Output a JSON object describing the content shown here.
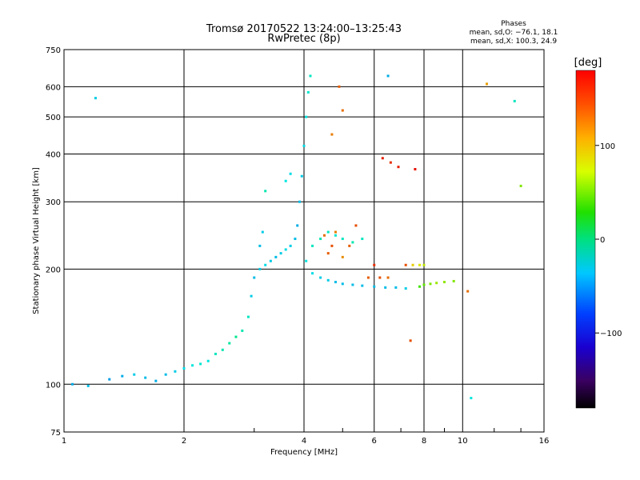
{
  "chart_data": {
    "type": "scatter",
    "title": "Tromsø 20170522 13:24:00–13:25:43",
    "subtitle": "RwPretec (8p)",
    "phases_header": "Phases",
    "phases_line1": "mean, sd,O: −76.1, 18.1",
    "phases_line2": "mean, sd,X: 100.3, 24.9",
    "xlabel": "Frequency [MHz]",
    "ylabel": "Stationary phase Virtual Height [km]",
    "x_scale": "log",
    "y_scale": "log",
    "xlim": [
      1,
      16
    ],
    "ylim": [
      75,
      750
    ],
    "x_ticks": [
      1,
      2,
      4,
      6,
      8,
      10,
      16
    ],
    "x_tick_labels": [
      "1",
      "2",
      "4",
      "6",
      "8",
      "10",
      "16"
    ],
    "y_ticks": [
      75,
      100,
      200,
      300,
      400,
      500,
      600,
      750
    ],
    "y_tick_labels": [
      "75",
      "100",
      "200",
      "300",
      "400",
      "500",
      "600",
      "750"
    ],
    "grid": true,
    "colorbar": {
      "label": "[deg]",
      "range": [
        -180,
        180
      ],
      "ticks": [
        100,
        0,
        -100
      ],
      "tick_labels": [
        "100",
        "0",
        "−100"
      ]
    },
    "series": [
      {
        "values": [
          [
            1.05,
            100,
            -90
          ],
          [
            1.15,
            99,
            -85
          ],
          [
            1.3,
            103,
            -95
          ],
          [
            1.4,
            105,
            -90
          ],
          [
            1.5,
            106,
            -80
          ],
          [
            1.6,
            104,
            -85
          ],
          [
            1.7,
            102,
            -90
          ],
          [
            1.8,
            106,
            -85
          ],
          [
            1.9,
            108,
            -80
          ],
          [
            2.0,
            110,
            -75
          ],
          [
            2.1,
            112,
            -70
          ],
          [
            2.2,
            113,
            -65
          ],
          [
            2.3,
            115,
            -70
          ],
          [
            2.4,
            120,
            -60
          ],
          [
            2.5,
            123,
            -55
          ],
          [
            2.6,
            128,
            -50
          ],
          [
            2.7,
            133,
            -45
          ],
          [
            2.8,
            138,
            -55
          ],
          [
            2.9,
            150,
            -60
          ],
          [
            2.95,
            170,
            -80
          ],
          [
            3.0,
            190,
            -85
          ],
          [
            3.1,
            200,
            -80
          ],
          [
            3.2,
            205,
            -75
          ],
          [
            3.3,
            210,
            -80
          ],
          [
            3.4,
            215,
            -85
          ],
          [
            3.5,
            220,
            -80
          ],
          [
            3.6,
            225,
            -75
          ],
          [
            3.7,
            230,
            -80
          ],
          [
            3.8,
            240,
            -85
          ],
          [
            3.85,
            260,
            -90
          ],
          [
            3.9,
            300,
            -85
          ],
          [
            3.95,
            350,
            -80
          ],
          [
            4.0,
            420,
            -75
          ],
          [
            4.05,
            500,
            -70
          ],
          [
            4.1,
            580,
            -65
          ],
          [
            4.15,
            640,
            -60
          ],
          [
            3.1,
            230,
            -85
          ],
          [
            3.15,
            250,
            -80
          ],
          [
            3.2,
            320,
            -55
          ],
          [
            3.6,
            340,
            -70
          ],
          [
            3.7,
            355,
            -75
          ],
          [
            4.05,
            210,
            -70
          ],
          [
            4.2,
            195,
            -75
          ],
          [
            4.4,
            190,
            -80
          ],
          [
            4.6,
            187,
            -80
          ],
          [
            4.8,
            185,
            -85
          ],
          [
            5.0,
            183,
            -85
          ],
          [
            5.3,
            182,
            -85
          ],
          [
            5.6,
            181,
            -85
          ],
          [
            6.0,
            180,
            -85
          ],
          [
            6.4,
            179,
            -85
          ],
          [
            6.8,
            179,
            -85
          ],
          [
            7.2,
            178,
            -80
          ],
          [
            1.2,
            560,
            -80
          ],
          [
            6.5,
            640,
            -90
          ],
          [
            10.5,
            92,
            -70
          ],
          [
            4.2,
            230,
            -60
          ],
          [
            4.4,
            240,
            -55
          ],
          [
            4.6,
            250,
            -60
          ],
          [
            4.8,
            245,
            -65
          ],
          [
            5.0,
            240,
            -60
          ],
          [
            5.3,
            235,
            -55
          ],
          [
            5.6,
            240,
            -60
          ],
          [
            13.5,
            550,
            -60
          ]
        ]
      },
      {
        "values": [
          [
            4.5,
            245,
            110
          ],
          [
            4.6,
            220,
            115
          ],
          [
            4.7,
            230,
            120
          ],
          [
            4.8,
            250,
            105
          ],
          [
            4.9,
            600,
            115
          ],
          [
            5.0,
            520,
            110
          ],
          [
            5.0,
            215,
            100
          ],
          [
            5.2,
            230,
            115
          ],
          [
            5.4,
            260,
            120
          ],
          [
            4.7,
            450,
            105
          ],
          [
            6.0,
            205,
            130
          ],
          [
            6.3,
            390,
            135
          ],
          [
            6.6,
            380,
            130
          ],
          [
            6.9,
            370,
            135
          ],
          [
            7.2,
            205,
            120
          ],
          [
            7.5,
            205,
            80
          ],
          [
            7.8,
            205,
            70
          ],
          [
            8.0,
            205,
            60
          ],
          [
            7.6,
            365,
            140
          ],
          [
            7.8,
            180,
            20
          ],
          [
            8.0,
            182,
            30
          ],
          [
            8.3,
            183,
            40
          ],
          [
            8.6,
            184,
            50
          ],
          [
            9.0,
            185,
            45
          ],
          [
            9.5,
            186,
            40
          ],
          [
            10.3,
            175,
            110
          ],
          [
            11.5,
            610,
            95
          ],
          [
            7.4,
            130,
            120
          ],
          [
            5.8,
            190,
            115
          ],
          [
            6.2,
            190,
            120
          ],
          [
            6.5,
            190,
            110
          ],
          [
            14.0,
            330,
            40
          ]
        ]
      }
    ]
  }
}
